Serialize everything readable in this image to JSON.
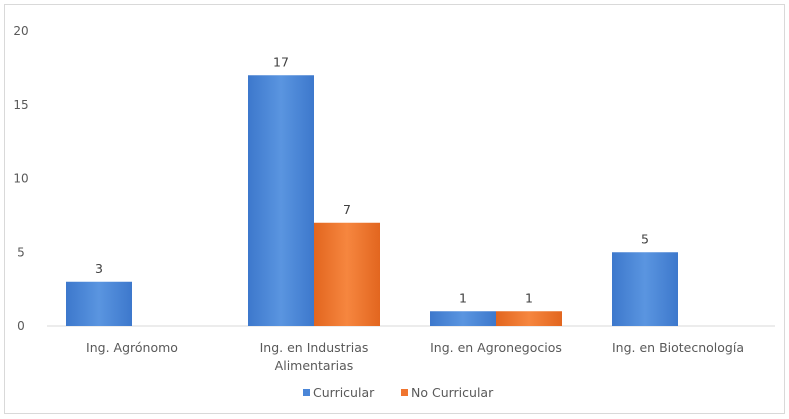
{
  "chart_data": {
    "type": "bar",
    "title": "",
    "xlabel": "",
    "ylabel": "",
    "ylim": [
      0,
      20
    ],
    "yticks": [
      "0",
      "5",
      "10",
      "15",
      "20"
    ],
    "categories": [
      [
        "Ing. Agrónomo"
      ],
      [
        "Ing. en Industrias",
        "Alimentarias"
      ],
      [
        "Ing. en Agronegocios"
      ],
      [
        "Ing. en Biotecnología"
      ]
    ],
    "series": [
      {
        "name": "Curricular",
        "values": [
          3,
          17,
          1,
          5
        ],
        "color": "#4a86d8"
      },
      {
        "name": "No Curricular",
        "values": [
          null,
          7,
          1,
          null
        ],
        "color": "#f0752f"
      }
    ],
    "grid": false,
    "legend_position": "bottom"
  }
}
